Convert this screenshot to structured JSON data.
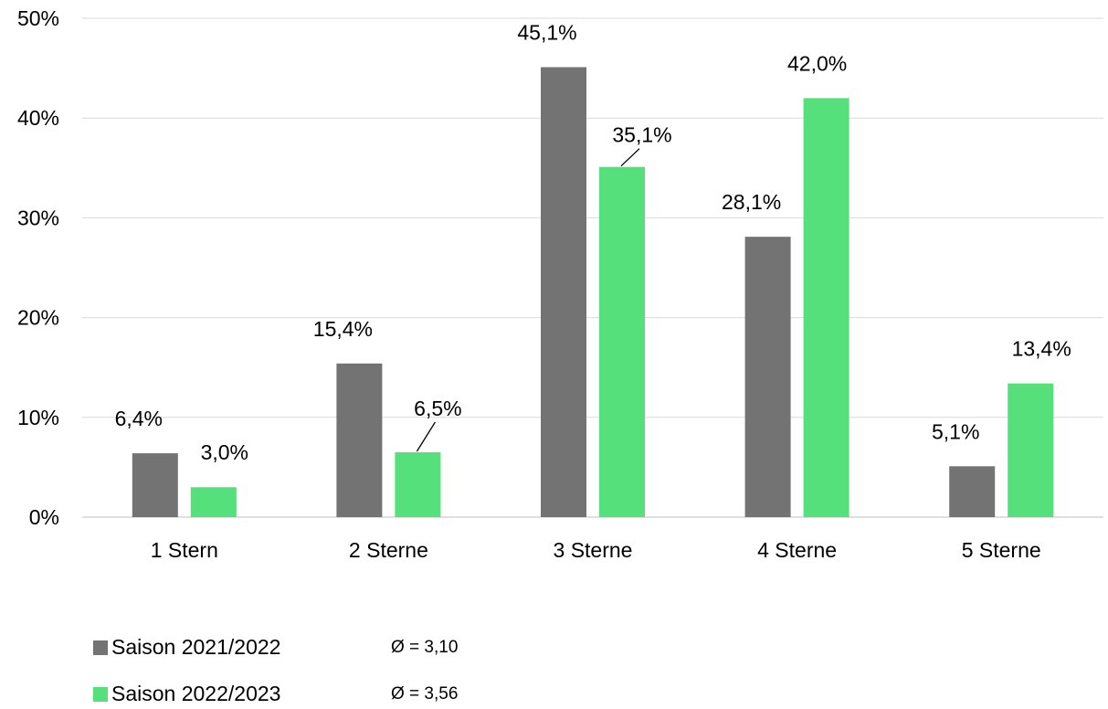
{
  "chart_data": {
    "type": "bar",
    "categories": [
      "1 Stern",
      "2 Sterne",
      "3 Sterne",
      "4 Sterne",
      "5 Sterne"
    ],
    "series": [
      {
        "name": "Saison 2021/2022",
        "values": [
          6.4,
          15.4,
          45.1,
          28.1,
          5.1
        ],
        "labels": [
          "6,4%",
          "15,4%",
          "45,1%",
          "28,1%",
          "5,1%"
        ],
        "color": "#737373",
        "average": "Ø = 3,10"
      },
      {
        "name": "Saison 2022/2023",
        "values": [
          3.0,
          6.5,
          35.1,
          42.0,
          13.4
        ],
        "labels": [
          "3,0%",
          "6,5%",
          "35,1%",
          "42,0%",
          "13,4%"
        ],
        "color": "#55e07b",
        "average": "Ø = 3,56"
      }
    ],
    "y_ticks": [
      "0%",
      "10%",
      "20%",
      "30%",
      "40%",
      "50%"
    ],
    "ylim": [
      0,
      50
    ],
    "grid": true,
    "legend_position": "bottom-left"
  }
}
